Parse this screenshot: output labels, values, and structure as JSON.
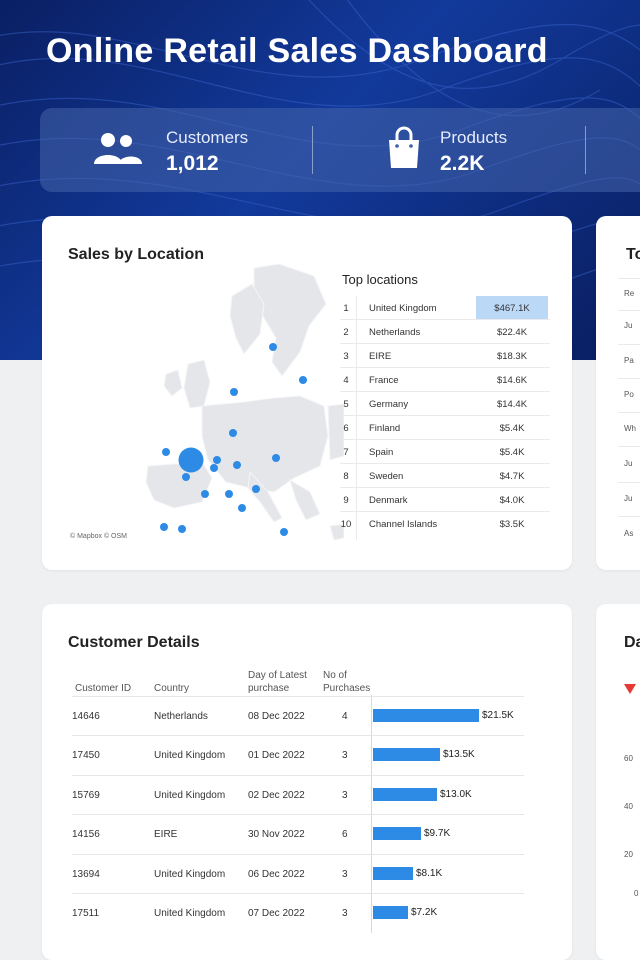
{
  "title": "Online Retail Sales Dashboard",
  "kpis": [
    {
      "label": "Customers",
      "value": "1,012",
      "icon": "customers-icon"
    },
    {
      "label": "Products",
      "value": "2.2K",
      "icon": "shopping-bag-icon"
    }
  ],
  "sales_by_location": {
    "title": "Sales by Location",
    "attribution": "© Mapbox © OSM",
    "top_title": "Top locations",
    "rows": [
      {
        "rank": "1",
        "name": "United Kingdom",
        "value": "$467.1K"
      },
      {
        "rank": "2",
        "name": "Netherlands",
        "value": "$22.4K"
      },
      {
        "rank": "3",
        "name": "EIRE",
        "value": "$18.3K"
      },
      {
        "rank": "4",
        "name": "France",
        "value": "$14.6K"
      },
      {
        "rank": "5",
        "name": "Germany",
        "value": "$14.4K"
      },
      {
        "rank": "6",
        "name": "Finland",
        "value": "$5.4K"
      },
      {
        "rank": "7",
        "name": "Spain",
        "value": "$5.4K"
      },
      {
        "rank": "8",
        "name": "Sweden",
        "value": "$4.7K"
      },
      {
        "rank": "9",
        "name": "Denmark",
        "value": "$4.0K"
      },
      {
        "rank": "10",
        "name": "Channel Islands",
        "value": "$3.5K"
      }
    ]
  },
  "top_panel": {
    "title_partial": "To",
    "rows": [
      "Re",
      "Ju",
      "Pa",
      "Po",
      "Wh",
      "Ju",
      "Ju",
      "As"
    ]
  },
  "customer_details": {
    "title": "Customer Details",
    "headers": {
      "id": "Customer ID",
      "country": "Country",
      "latest_l1": "Day of Latest",
      "latest_l2": "purchase",
      "purch_l1": "No of",
      "purch_l2": "Purchases"
    },
    "max_value": 21.5,
    "rows": [
      {
        "id": "14646",
        "country": "Netherlands",
        "date": "08 Dec 2022",
        "purchases": "4",
        "amount": 21.5,
        "label": "$21.5K"
      },
      {
        "id": "17450",
        "country": "United Kingdom",
        "date": "01 Dec 2022",
        "purchases": "3",
        "amount": 13.5,
        "label": "$13.5K"
      },
      {
        "id": "15769",
        "country": "United Kingdom",
        "date": "02 Dec 2022",
        "purchases": "3",
        "amount": 13.0,
        "label": "$13.0K"
      },
      {
        "id": "14156",
        "country": "EIRE",
        "date": "30 Nov 2022",
        "purchases": "6",
        "amount": 9.7,
        "label": "$9.7K"
      },
      {
        "id": "13694",
        "country": "United Kingdom",
        "date": "06 Dec 2022",
        "purchases": "3",
        "amount": 8.1,
        "label": "$8.1K"
      },
      {
        "id": "17511",
        "country": "United Kingdom",
        "date": "07 Dec 2022",
        "purchases": "3",
        "amount": 7.2,
        "label": "$7.2K"
      }
    ]
  },
  "right_panel": {
    "title_partial": "Da",
    "ticks": [
      "60",
      "40",
      "20",
      "0"
    ]
  },
  "colors": {
    "accent": "#2d8be6",
    "highlight": "#bcd8f7",
    "hero": "#0d2a7a"
  }
}
